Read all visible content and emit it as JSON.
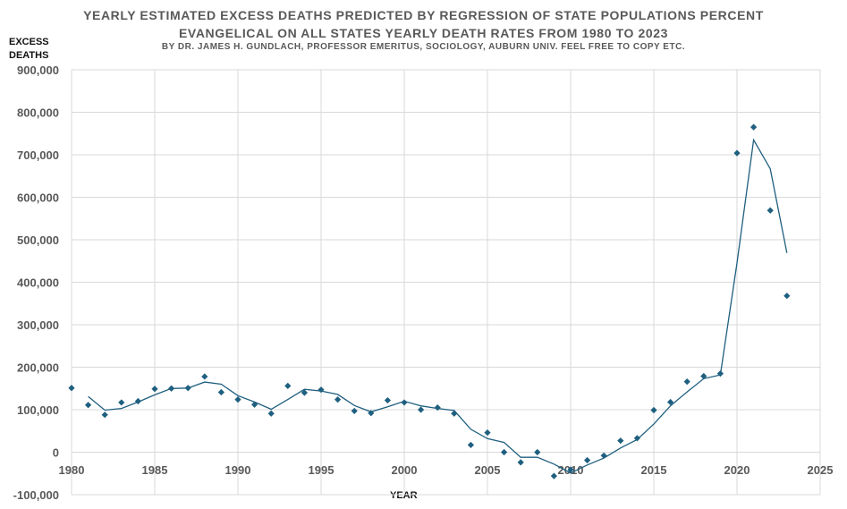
{
  "chart_data": {
    "type": "scatter",
    "title": "YEARLY ESTIMATED EXCESS DEATHS PREDICTED BY REGRESSION OF STATE POPULATIONS PERCENT",
    "title_line2": "EVANGELICAL ON ALL STATES YEARLY DEATH RATES  FROM 1980 TO 2023",
    "subtitle": "BY DR. JAMES H. GUNDLACH, PROFESSOR EMERITUS, SOCIOLOGY, AUBURN UNIV. FEEL FREE TO COPY ETC.",
    "ylabel_line1": "EXCESS",
    "ylabel_line2": "DEATHS",
    "xlabel": "YEAR",
    "xlim": [
      1980,
      2025
    ],
    "ylim": [
      -100000,
      900000
    ],
    "x_ticks": [
      1980,
      1985,
      1990,
      1995,
      2000,
      2005,
      2010,
      2015,
      2020,
      2025
    ],
    "y_ticks": [
      {
        "value": -100000,
        "label": "-100,000"
      },
      {
        "value": 0,
        "label": "0"
      },
      {
        "value": 100000,
        "label": "100,000"
      },
      {
        "value": 200000,
        "label": "200,000"
      },
      {
        "value": 300000,
        "label": "300,000"
      },
      {
        "value": 400000,
        "label": "400,000"
      },
      {
        "value": 500000,
        "label": "500,000"
      },
      {
        "value": 600000,
        "label": "600,000"
      },
      {
        "value": 700000,
        "label": "700,000"
      },
      {
        "value": 800000,
        "label": "800,000"
      },
      {
        "value": 900000,
        "label": "900,000"
      }
    ],
    "grid": true,
    "colors": {
      "series": "#1f5f7f",
      "grid": "#d9d9d9",
      "tick_text": "#595959"
    },
    "series": [
      {
        "kind": "points",
        "x": [
          1980,
          1981,
          1982,
          1983,
          1984,
          1985,
          1986,
          1987,
          1988,
          1989,
          1990,
          1991,
          1992,
          1993,
          1994,
          1995,
          1996,
          1997,
          1998,
          1999,
          2000,
          2001,
          2002,
          2003,
          2004,
          2005,
          2006,
          2007,
          2008,
          2009,
          2010,
          2011,
          2012,
          2013,
          2014,
          2015,
          2016,
          2017,
          2018,
          2019,
          2020,
          2021,
          2022,
          2023
        ],
        "y": [
          151000,
          111000,
          88000,
          117000,
          120000,
          149000,
          150000,
          151000,
          178000,
          141000,
          124000,
          112000,
          91000,
          156000,
          140000,
          147000,
          124000,
          97000,
          92000,
          122000,
          117000,
          100000,
          105000,
          91000,
          17000,
          46000,
          0,
          -24000,
          0,
          -56000,
          -41000,
          -19000,
          -8000,
          27000,
          33000,
          99000,
          118000,
          166000,
          179000,
          185000,
          704000,
          765000,
          569000,
          368000
        ]
      },
      {
        "kind": "trendline",
        "x": [
          1981,
          1982,
          1983,
          1984,
          1985,
          1986,
          1987,
          1988,
          1989,
          1990,
          1991,
          1992,
          1993,
          1994,
          1995,
          1996,
          1997,
          1998,
          1999,
          2000,
          2001,
          2002,
          2003,
          2004,
          2005,
          2006,
          2007,
          2008,
          2009,
          2010,
          2011,
          2012,
          2013,
          2014,
          2015,
          2016,
          2017,
          2018,
          2019,
          2020,
          2021,
          2022,
          2023
        ],
        "y": [
          131000,
          99000,
          103000,
          118000,
          135000,
          150000,
          151000,
          165000,
          160000,
          133000,
          118000,
          101000,
          124000,
          148000,
          144000,
          136000,
          110000,
          95000,
          107000,
          120000,
          109000,
          103000,
          98000,
          54000,
          32000,
          23000,
          -12000,
          -12000,
          -28000,
          -49000,
          -30000,
          -14000,
          10000,
          30000,
          66000,
          109000,
          142000,
          173000,
          182000,
          445000,
          735000,
          667000,
          469000
        ]
      }
    ]
  }
}
